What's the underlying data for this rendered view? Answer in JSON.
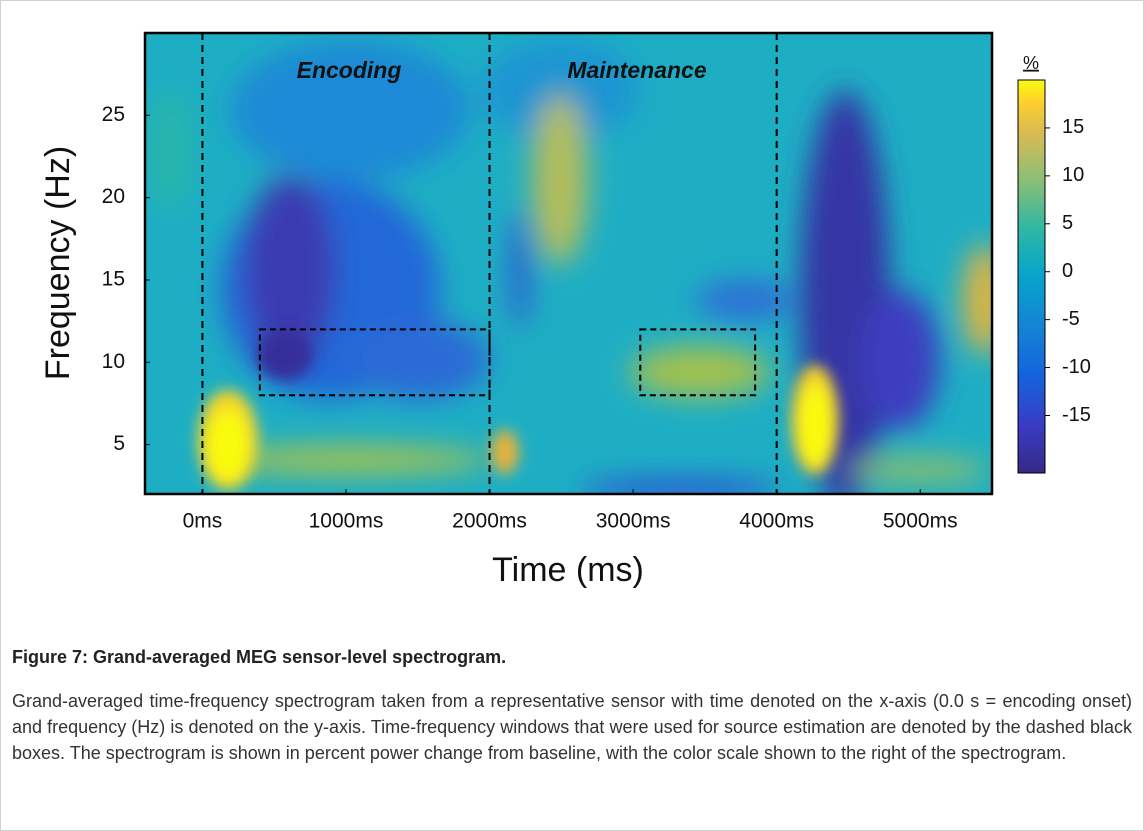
{
  "chart_data": {
    "type": "spectrogram",
    "xlabel": "Time (ms)",
    "ylabel": "Frequency (Hz)",
    "xlim": [
      -400,
      5500
    ],
    "ylim": [
      2,
      30
    ],
    "xticks": [
      {
        "value": 0,
        "label": "0ms"
      },
      {
        "value": 1000,
        "label": "1000ms"
      },
      {
        "value": 2000,
        "label": "2000ms"
      },
      {
        "value": 3000,
        "label": "3000ms"
      },
      {
        "value": 4000,
        "label": "4000ms"
      },
      {
        "value": 5000,
        "label": "5000ms"
      }
    ],
    "yticks": [
      5,
      10,
      15,
      20,
      25
    ],
    "markers": [
      0,
      2000,
      4000
    ],
    "boxes": [
      {
        "x": [
          400,
          2000
        ],
        "y": [
          8,
          12
        ]
      },
      {
        "x": [
          3050,
          3850
        ],
        "y": [
          8,
          12
        ]
      }
    ],
    "annotations": [
      "Encoding",
      "Maintenance"
    ],
    "colorbar_label": "%",
    "clim": [
      -21,
      20
    ],
    "cticks": [
      -15,
      -10,
      -5,
      0,
      5,
      10,
      15
    ],
    "grid": false
  },
  "caption": {
    "title": "Figure 7: Grand-averaged MEG sensor-level spectrogram.",
    "text": "Grand-averaged time-frequency spectrogram taken from a representative sensor with time denoted on the x-axis (0.0 s = encoding onset) and frequency (Hz) is denoted on the y-axis. Time-frequency windows that were used for source estimation are denoted by the dashed black boxes. The spectrogram is shown in percent power change from baseline, with the color scale shown to the right of the spectrogram."
  }
}
